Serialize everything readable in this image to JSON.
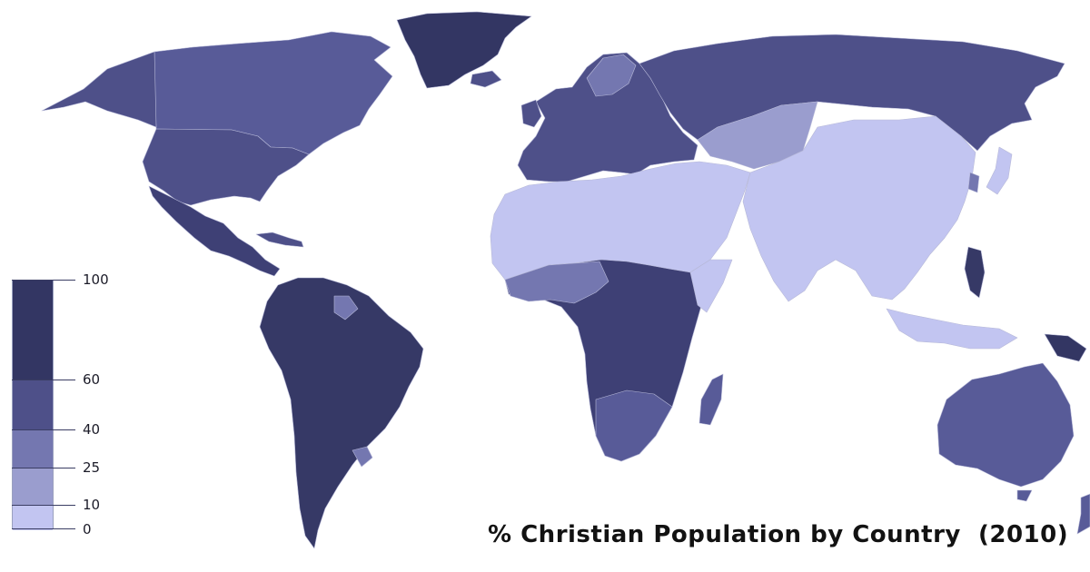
{
  "map": {
    "title": "% Christian Population by Country  (2010)",
    "legend": {
      "ticks": [
        "100",
        "60",
        "40",
        "25",
        "10",
        "0"
      ],
      "colors": {
        "c100": "#333663",
        "c60": "#4e5089",
        "c40": "#7477b0",
        "c25": "#9a9dce",
        "c10": "#c2c5f1"
      }
    }
  }
}
